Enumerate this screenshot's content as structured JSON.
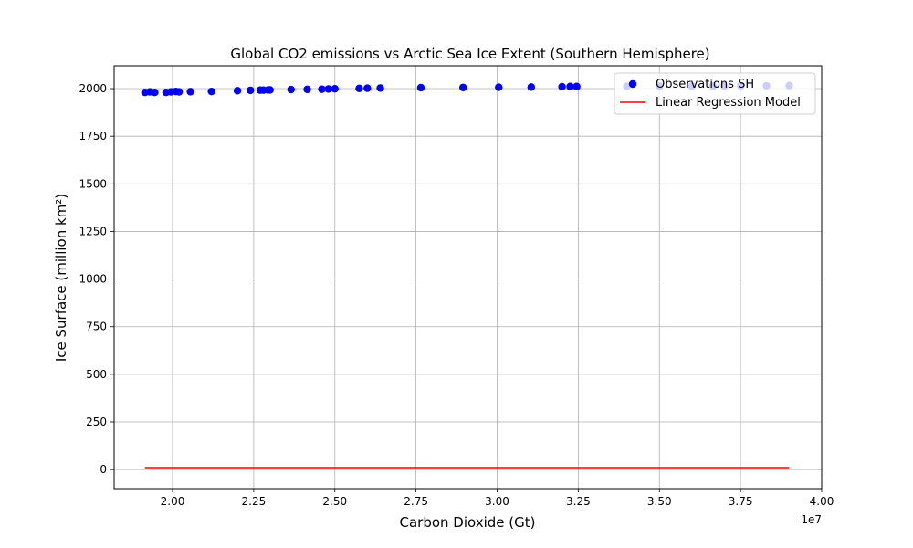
{
  "chart_data": {
    "type": "scatter",
    "title": "Global CO2 emissions vs Arctic Sea Ice Extent (Southern Hemisphere)",
    "xlabel": "Carbon Dioxide (Gt)",
    "ylabel": "Ice Surface (million km²)",
    "x_offset_label": "1e7",
    "xlim": [
      18200000.0,
      40000000.0
    ],
    "ylim": [
      -100,
      2120
    ],
    "xticks": [
      20000000.0,
      22500000.0,
      25000000.0,
      27500000.0,
      30000000.0,
      32500000.0,
      35000000.0,
      37500000.0,
      40000000.0
    ],
    "xtick_labels": [
      "2.00",
      "2.25",
      "2.50",
      "2.75",
      "3.00",
      "3.25",
      "3.50",
      "3.75",
      "4.00"
    ],
    "yticks": [
      0,
      250,
      500,
      750,
      1000,
      1250,
      1500,
      1750,
      2000
    ],
    "ytick_labels": [
      "0",
      "250",
      "500",
      "750",
      "1000",
      "1250",
      "1500",
      "1750",
      "2000"
    ],
    "grid": true,
    "legend_position": "top-right",
    "series": [
      {
        "name": "Observations SH",
        "kind": "scatter",
        "color": "#0000ff",
        "x": [
          19150000.0,
          19300000.0,
          19450000.0,
          19800000.0,
          19950000.0,
          20100000.0,
          20200000.0,
          20550000.0,
          21200000.0,
          22000000.0,
          22400000.0,
          22700000.0,
          22800000.0,
          22950000.0,
          23000000.0,
          23650000.0,
          24150000.0,
          24600000.0,
          24800000.0,
          25000000.0,
          25750000.0,
          26000000.0,
          26400000.0,
          27650000.0,
          28950000.0,
          30050000.0,
          31050000.0,
          32000000.0,
          32250000.0,
          32450000.0,
          34000000.0,
          35000000.0,
          36000000.0,
          36650000.0,
          37000000.0,
          37500000.0,
          38300000.0,
          39000000.0
        ],
        "y": [
          1980,
          1983,
          1980,
          1980,
          1983,
          1985,
          1983,
          1984,
          1985,
          1989,
          1991,
          1992,
          1992,
          1993,
          1993,
          1995,
          1996,
          1997,
          1998,
          1999,
          2001,
          2002,
          2003,
          2005,
          2006,
          2007,
          2008,
          2010,
          2011,
          2011,
          2012,
          2013,
          2013,
          2014,
          2014,
          2015,
          2015,
          2016
        ]
      },
      {
        "name": "Linear Regression Model",
        "kind": "line",
        "color": "#ff0000",
        "x": [
          19150000.0,
          39000000.0
        ],
        "y": [
          10,
          10
        ]
      }
    ]
  }
}
